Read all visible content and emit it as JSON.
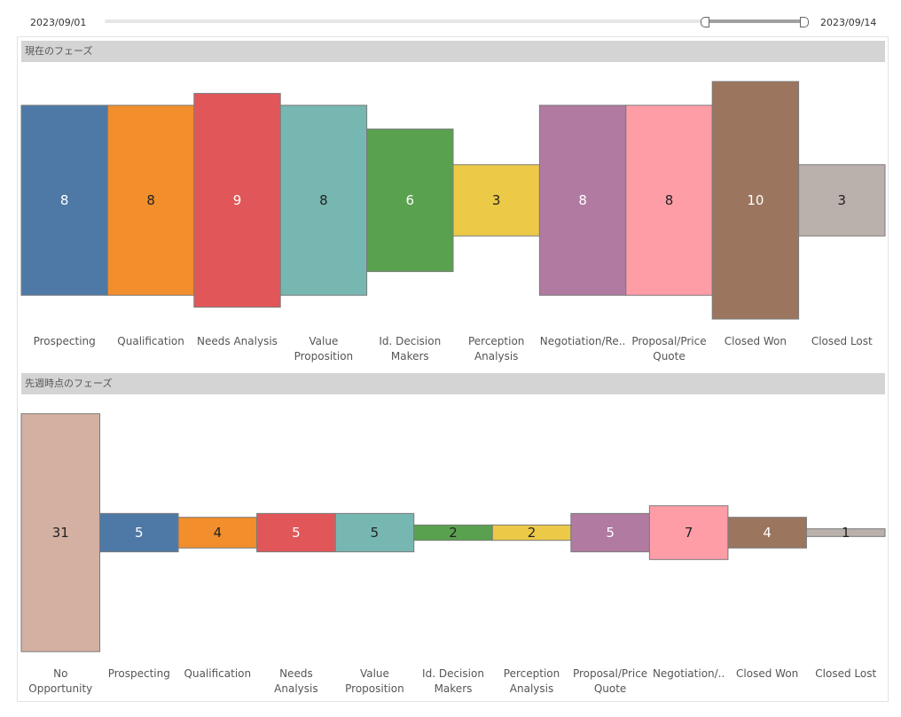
{
  "date_range": {
    "start": "2023/09/01",
    "end": "2023/09/14",
    "selected_start_fraction": 0.855,
    "selected_end_fraction": 1.0
  },
  "sections": {
    "current_title": "現在のフェーズ",
    "last_week_title": "先週時点のフェーズ"
  },
  "colors": {
    "no_opportunity": "#d4b0a2",
    "prospecting": "#4e79a7",
    "qualification": "#f28e2b",
    "needs_analysis": "#e15759",
    "value_proposition": "#76b7b2",
    "decision_makers": "#59a14f",
    "perception_analysis": "#edc948",
    "negotiation": "#b07aa1",
    "proposal": "#ff9da7",
    "closed_won": "#9c755f",
    "closed_lost": "#bab0ac"
  },
  "chart_data": [
    {
      "type": "bar",
      "title": "現在のフェーズ",
      "categories": [
        "Prospecting",
        "Qualification",
        "Needs Analysis",
        "Value\nProposition",
        "Id. Decision\nMakers",
        "Perception\nAnalysis",
        "Negotiation/Re..",
        "Proposal/Price\nQuote",
        "Closed Won",
        "Closed Lost"
      ],
      "values": [
        8,
        8,
        9,
        8,
        6,
        3,
        8,
        8,
        10,
        3
      ],
      "colors": [
        "#4e79a7",
        "#f28e2b",
        "#e15759",
        "#76b7b2",
        "#59a14f",
        "#edc948",
        "#b07aa1",
        "#ff9da7",
        "#9c755f",
        "#bab0ac"
      ],
      "label_colors": [
        "#ffffff",
        "#222222",
        "#ffffff",
        "#222222",
        "#ffffff",
        "#222222",
        "#ffffff",
        "#222222",
        "#ffffff",
        "#222222"
      ]
    },
    {
      "type": "bar",
      "title": "先週時点のフェーズ",
      "categories": [
        "No\nOpportunity",
        "Prospecting",
        "Qualification",
        "Needs Analysis",
        "Value\nProposition",
        "Id. Decision\nMakers",
        "Perception\nAnalysis",
        "Proposal/Price\nQuote",
        "Negotiation/..",
        "Closed Won",
        "Closed Lost"
      ],
      "values": [
        31,
        5,
        4,
        5,
        5,
        2,
        2,
        5,
        7,
        4,
        1
      ],
      "colors": [
        "#d4b0a2",
        "#4e79a7",
        "#f28e2b",
        "#e15759",
        "#76b7b2",
        "#59a14f",
        "#edc948",
        "#b07aa1",
        "#ff9da7",
        "#9c755f",
        "#bab0ac"
      ],
      "label_colors": [
        "#222222",
        "#ffffff",
        "#222222",
        "#ffffff",
        "#222222",
        "#222222",
        "#222222",
        "#ffffff",
        "#222222",
        "#ffffff",
        "#222222"
      ]
    }
  ]
}
